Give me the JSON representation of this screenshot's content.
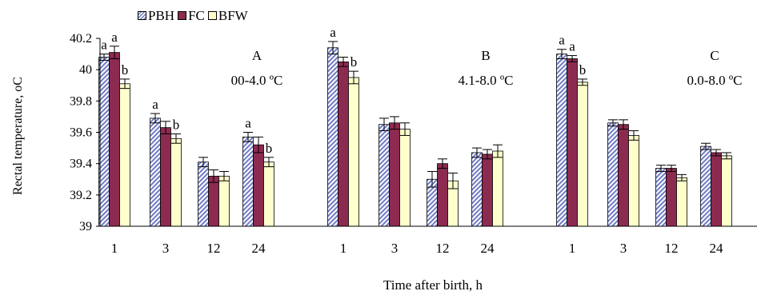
{
  "chart_data": {
    "type": "bar",
    "xlabel": "Time after birth, h",
    "ylabel": "Rectal temperature, oC",
    "ylim": [
      39,
      40.2
    ],
    "yticks": [
      "39",
      "39.2",
      "39.4",
      "39.6",
      "39.8",
      "40",
      "40.2"
    ],
    "grid": false,
    "legend_position": "top-left",
    "series": [
      {
        "name": "PBH",
        "color": "#9aa3d6",
        "pattern": "hatch"
      },
      {
        "name": "FC",
        "color": "#8c2a50",
        "pattern": "solid"
      },
      {
        "name": "BFW",
        "color": "#ffffcc",
        "pattern": "solid"
      }
    ],
    "groups": [
      {
        "title": "A",
        "subtitle": "00-4.0 ºC",
        "categories": [
          "1",
          "3",
          "12",
          "24"
        ],
        "values": {
          "PBH": [
            40.08,
            39.69,
            39.41,
            39.57
          ],
          "FC": [
            40.11,
            39.63,
            39.32,
            39.52
          ],
          "BFW": [
            39.91,
            39.56,
            39.32,
            39.41
          ]
        },
        "errors": {
          "PBH": [
            0.02,
            0.03,
            0.03,
            0.03
          ],
          "FC": [
            0.04,
            0.04,
            0.04,
            0.05
          ],
          "BFW": [
            0.03,
            0.03,
            0.03,
            0.03
          ]
        },
        "letters": {
          "PBH": [
            "a",
            "a",
            "",
            "a"
          ],
          "FC": [
            "a",
            "",
            "",
            ""
          ],
          "BFW": [
            "b",
            "b",
            "",
            "b"
          ]
        }
      },
      {
        "title": "B",
        "subtitle": "4.1-8.0 ºC",
        "categories": [
          "1",
          "3",
          "12",
          "24"
        ],
        "values": {
          "PBH": [
            40.14,
            39.65,
            39.3,
            39.47
          ],
          "FC": [
            40.05,
            39.66,
            39.4,
            39.46
          ],
          "BFW": [
            39.95,
            39.62,
            39.29,
            39.48
          ]
        },
        "errors": {
          "PBH": [
            0.04,
            0.04,
            0.05,
            0.03
          ],
          "FC": [
            0.03,
            0.04,
            0.03,
            0.03
          ],
          "BFW": [
            0.04,
            0.04,
            0.05,
            0.04
          ]
        },
        "letters": {
          "PBH": [
            "a",
            "",
            "",
            ""
          ],
          "FC": [
            "",
            "",
            "",
            ""
          ],
          "BFW": [
            "b",
            "",
            "",
            ""
          ]
        }
      },
      {
        "title": "C",
        "subtitle": "0.0-8.0 ºC",
        "categories": [
          "1",
          "3",
          "12",
          "24"
        ],
        "values": {
          "PBH": [
            40.1,
            39.66,
            39.37,
            39.51
          ],
          "FC": [
            40.07,
            39.65,
            39.37,
            39.47
          ],
          "BFW": [
            39.92,
            39.58,
            39.31,
            39.45
          ]
        },
        "errors": {
          "PBH": [
            0.03,
            0.02,
            0.02,
            0.02
          ],
          "FC": [
            0.02,
            0.03,
            0.02,
            0.02
          ],
          "BFW": [
            0.02,
            0.03,
            0.02,
            0.02
          ]
        },
        "letters": {
          "PBH": [
            "a",
            "",
            "",
            ""
          ],
          "FC": [
            "a",
            "",
            "",
            ""
          ],
          "BFW": [
            "b",
            "",
            "",
            ""
          ]
        }
      }
    ]
  }
}
